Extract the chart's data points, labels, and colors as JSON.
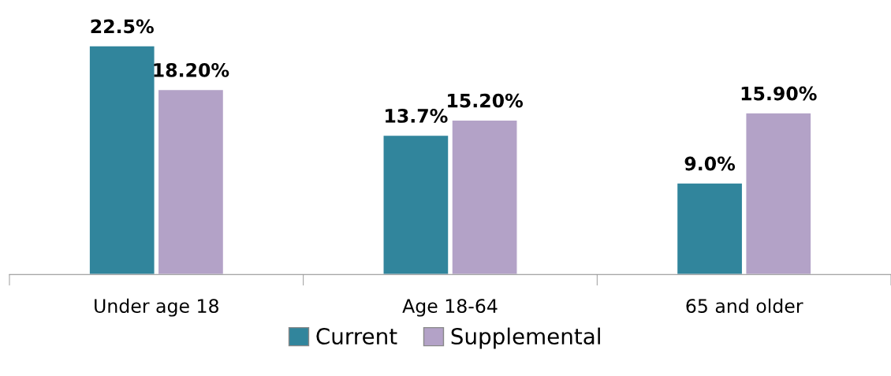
{
  "chart_data": {
    "type": "bar",
    "categories": [
      "Under age 18",
      "Age 18-64",
      "65 and older"
    ],
    "series": [
      {
        "name": "Current",
        "color": "#31859c",
        "values": [
          22.5,
          13.7,
          9.0
        ],
        "value_labels": [
          "22.5%",
          "13.7%",
          "9.0%"
        ]
      },
      {
        "name": "Supplemental",
        "color": "#b3a2c7",
        "values": [
          18.2,
          15.2,
          15.9
        ],
        "value_labels": [
          "18.20%",
          "15.20%",
          "15.90%"
        ]
      }
    ],
    "legend": "bottom",
    "grid": false
  }
}
